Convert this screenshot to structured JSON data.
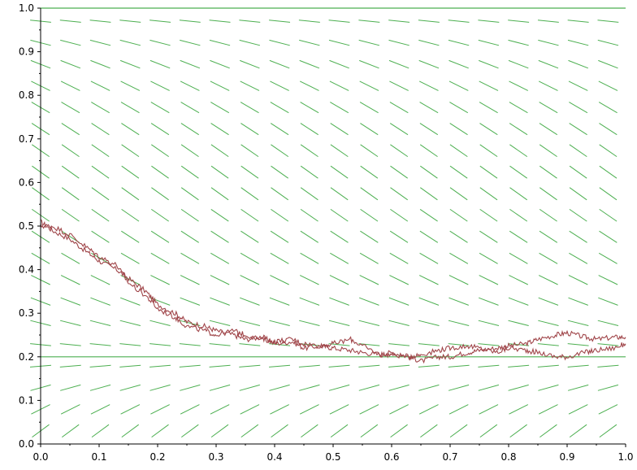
{
  "chart_data": {
    "type": "line",
    "title": "",
    "xlabel": "",
    "ylabel": "",
    "xlim": [
      0,
      1
    ],
    "ylim": [
      0,
      1
    ],
    "grid": false,
    "legend": "none",
    "x_ticks": [
      0.0,
      0.1,
      0.2,
      0.3,
      0.4,
      0.5,
      0.6,
      0.7,
      0.8,
      0.9,
      1.0
    ],
    "x_tick_labels": [
      "0.0",
      "0.1",
      "0.2",
      "0.3",
      "0.4",
      "0.5",
      "0.6",
      "0.7",
      "0.8",
      "0.9",
      "1.0"
    ],
    "y_ticks": [
      0.0,
      0.1,
      0.2,
      0.3,
      0.4,
      0.5,
      0.6,
      0.7,
      0.8,
      0.9,
      1.0
    ],
    "y_tick_labels": [
      "0.0",
      "0.1",
      "0.2",
      "0.3",
      "0.4",
      "0.5",
      "0.6",
      "0.7",
      "0.8",
      "0.9",
      "1.0"
    ],
    "reference_lines": [
      {
        "orientation": "horizontal",
        "y": 1.0,
        "color": "#4caf50"
      },
      {
        "orientation": "horizontal",
        "y": 0.2,
        "color": "#4caf50"
      }
    ],
    "direction_field": {
      "color": "#4caf50",
      "x_range": [
        0.0,
        0.97
      ],
      "y_range": [
        0.03,
        0.97
      ],
      "columns": 20,
      "rows": 20,
      "equilibria": [
        0.2,
        1.0
      ],
      "description": "slope field of dy/dt proportional to -(y-0.2)(1-y)-type logistic decay toward 0.2"
    },
    "series": [
      {
        "color": "#a0464a",
        "x": [
          0.0,
          0.02,
          0.05,
          0.08,
          0.1,
          0.13,
          0.15,
          0.18,
          0.2,
          0.23,
          0.25,
          0.28,
          0.3,
          0.33,
          0.35,
          0.38,
          0.4,
          0.43,
          0.45,
          0.48,
          0.5,
          0.53,
          0.55,
          0.58,
          0.6,
          0.63,
          0.65,
          0.68,
          0.7,
          0.73,
          0.75,
          0.78,
          0.8,
          0.83,
          0.85,
          0.88,
          0.9,
          0.93,
          0.95,
          0.98,
          1.0
        ],
        "values": [
          0.51,
          0.49,
          0.47,
          0.44,
          0.42,
          0.4,
          0.38,
          0.35,
          0.32,
          0.3,
          0.28,
          0.27,
          0.26,
          0.25,
          0.24,
          0.245,
          0.23,
          0.235,
          0.22,
          0.225,
          0.22,
          0.215,
          0.21,
          0.205,
          0.21,
          0.2,
          0.19,
          0.2,
          0.2,
          0.21,
          0.215,
          0.22,
          0.225,
          0.23,
          0.24,
          0.25,
          0.255,
          0.245,
          0.24,
          0.245,
          0.245
        ]
      },
      {
        "color": "#a0464a",
        "x": [
          0.0,
          0.02,
          0.05,
          0.08,
          0.1,
          0.13,
          0.15,
          0.18,
          0.2,
          0.23,
          0.25,
          0.28,
          0.3,
          0.33,
          0.35,
          0.38,
          0.4,
          0.43,
          0.45,
          0.48,
          0.5,
          0.53,
          0.55,
          0.58,
          0.6,
          0.63,
          0.65,
          0.68,
          0.7,
          0.73,
          0.75,
          0.78,
          0.8,
          0.83,
          0.85,
          0.88,
          0.9,
          0.93,
          0.95,
          0.98,
          1.0
        ],
        "values": [
          0.5,
          0.5,
          0.48,
          0.45,
          0.43,
          0.41,
          0.37,
          0.34,
          0.31,
          0.29,
          0.27,
          0.26,
          0.25,
          0.26,
          0.25,
          0.24,
          0.235,
          0.24,
          0.23,
          0.225,
          0.23,
          0.24,
          0.225,
          0.205,
          0.205,
          0.2,
          0.205,
          0.215,
          0.22,
          0.225,
          0.22,
          0.21,
          0.22,
          0.215,
          0.21,
          0.2,
          0.2,
          0.21,
          0.215,
          0.22,
          0.23
        ]
      }
    ]
  }
}
